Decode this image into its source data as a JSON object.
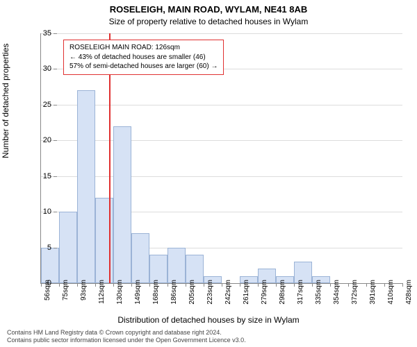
{
  "titles": {
    "main": "ROSELEIGH, MAIN ROAD, WYLAM, NE41 8AB",
    "sub": "Size of property relative to detached houses in Wylam"
  },
  "chart": {
    "type": "histogram",
    "y_axis": {
      "label": "Number of detached properties",
      "min": 0,
      "max": 35,
      "step": 5
    },
    "x_axis": {
      "label": "Distribution of detached houses by size in Wylam",
      "tick_start": 56,
      "tick_step": 18.7,
      "tick_count": 21,
      "tick_suffix": "sqm",
      "tick_values": [
        56,
        75,
        93,
        112,
        130,
        149,
        168,
        186,
        205,
        223,
        242,
        261,
        279,
        298,
        317,
        335,
        354,
        372,
        391,
        410,
        428
      ]
    },
    "bars": {
      "values": [
        5,
        10,
        27,
        12,
        22,
        7,
        4,
        5,
        4,
        1,
        0,
        1,
        2,
        1,
        3,
        1,
        0,
        0,
        0,
        0
      ],
      "fill_color": "#d6e2f5",
      "border_color": "#9bb3d6"
    },
    "reference": {
      "value_sqm": 126,
      "line_color": "#e03030"
    },
    "background_color": "#ffffff",
    "grid_color": "#dcdcdc"
  },
  "annotation": {
    "lines": [
      "ROSELEIGH MAIN ROAD: 126sqm",
      "← 43% of detached houses are smaller (46)",
      "57% of semi-detached houses are larger (60) →"
    ]
  },
  "footer": {
    "line1": "Contains HM Land Registry data © Crown copyright and database right 2024.",
    "line2": "Contains public sector information licensed under the Open Government Licence v3.0."
  }
}
